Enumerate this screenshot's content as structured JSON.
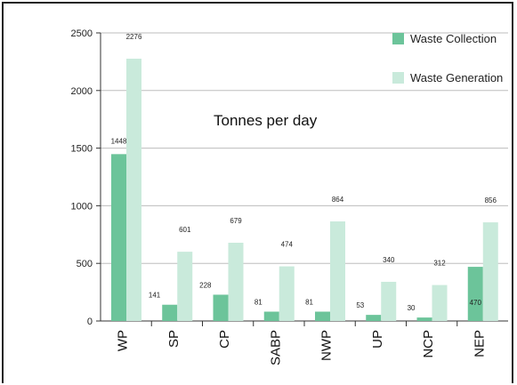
{
  "chart_data": {
    "type": "bar",
    "title": "",
    "subtitle": "Tonnes per day",
    "xlabel": "",
    "ylabel": "",
    "ylim": [
      0,
      2500
    ],
    "yticks": [
      0,
      500,
      1000,
      1500,
      2000,
      2500
    ],
    "categories": [
      "WP",
      "SP",
      "CP",
      "SABP",
      "NWP",
      "UP",
      "NCP",
      "NEP"
    ],
    "series": [
      {
        "name": "Waste Collection",
        "color": "#6cc49a",
        "values": [
          1448,
          141,
          228,
          81,
          81,
          53,
          30,
          470
        ]
      },
      {
        "name": "Waste Generation",
        "color": "#c9eadb",
        "values": [
          2276,
          601,
          679,
          474,
          864,
          340,
          312,
          856
        ]
      }
    ],
    "grid": true,
    "legend_position": "top-right"
  }
}
